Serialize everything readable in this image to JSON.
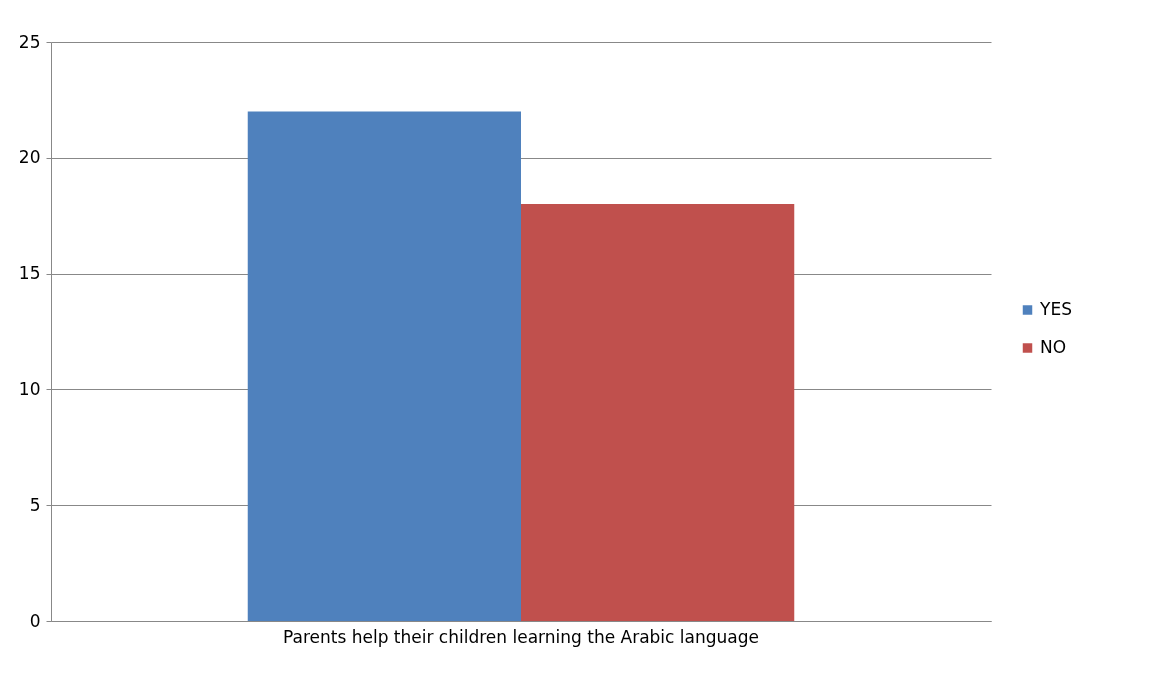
{
  "chart_data": {
    "type": "bar",
    "categories": [
      "Parents help their children learning the Arabic language"
    ],
    "series": [
      {
        "name": "YES",
        "color": "#4f81bd",
        "values": [
          22
        ]
      },
      {
        "name": "NO",
        "color": "#c0504d",
        "values": [
          18
        ]
      }
    ],
    "ylim": [
      0,
      25
    ],
    "yticks": [
      0,
      5,
      10,
      15,
      20,
      25
    ],
    "grid": "y",
    "legend": "right"
  }
}
